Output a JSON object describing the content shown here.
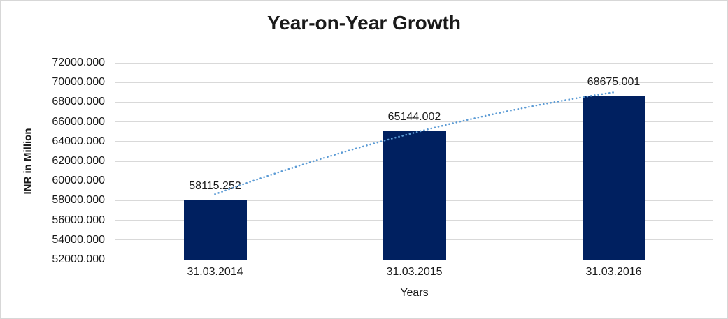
{
  "chart_data": {
    "type": "bar",
    "title": "Year-on-Year Growth",
    "xlabel": "Years",
    "ylabel": "INR in Million",
    "categories": [
      "31.03.2014",
      "31.03.2015",
      "31.03.2016"
    ],
    "values": [
      58115.252,
      65144.002,
      68675.001
    ],
    "value_labels": [
      "58115.252",
      "65144.002",
      "68675.001"
    ],
    "ylim": [
      52000,
      72000
    ],
    "y_tick_step": 2000,
    "y_tick_labels": [
      "52000.000",
      "54000.000",
      "56000.000",
      "58000.000",
      "60000.000",
      "62000.000",
      "64000.000",
      "66000.000",
      "68000.000",
      "70000.000",
      "72000.000"
    ],
    "grid": "horizontal",
    "legend": "none",
    "colors": {
      "bar": "#002060",
      "trendline": "#5B9BD5",
      "gridline": "#D9D9D9",
      "axis_line": "#BFBFBF",
      "text": "#1A1A1A"
    },
    "trendline": {
      "style": "dotted",
      "color": "#5B9BD5",
      "values_at_categories": [
        58650,
        64900,
        69000
      ]
    }
  }
}
